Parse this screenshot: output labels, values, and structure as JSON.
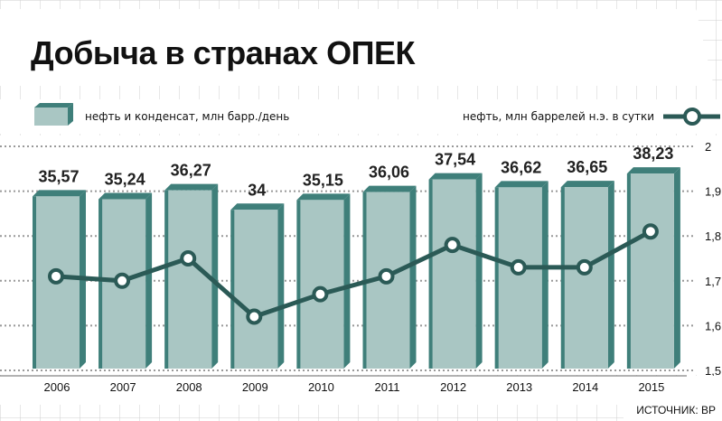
{
  "title": "Добыча в странах ОПЕК",
  "source": "ИСТОЧНИК: ВР",
  "colors": {
    "bar_face": "#a9c6c3",
    "bar_side": "#3f7f7a",
    "line": "#2b5a56",
    "grid": "#999999"
  },
  "chart_data": {
    "type": "bar",
    "categories": [
      "2006",
      "2007",
      "2008",
      "2009",
      "2010",
      "2011",
      "2012",
      "2013",
      "2014",
      "2015"
    ],
    "series": [
      {
        "name": "нефть и конденсат, млн барр./день",
        "type": "bar",
        "values": [
          35.57,
          35.24,
          36.27,
          34,
          35.15,
          36.06,
          37.54,
          36.62,
          36.65,
          38.23
        ],
        "labels": [
          "35,57",
          "35,24",
          "36,27",
          "34",
          "35,15",
          "36,06",
          "37,54",
          "36,62",
          "36,65",
          "38,23"
        ]
      },
      {
        "name": "нефть, млн баррелей н.э. в сутки",
        "type": "line",
        "axis": "right",
        "values": [
          1.71,
          1.7,
          1.75,
          1.62,
          1.67,
          1.71,
          1.78,
          1.73,
          1.73,
          1.81
        ]
      }
    ],
    "y2ticks": [
      "2",
      "1,9",
      "1,8",
      "1,7",
      "1,6",
      "1,5"
    ],
    "y2lim": [
      1.5,
      2.0
    ],
    "grid": true,
    "legend": "top"
  }
}
